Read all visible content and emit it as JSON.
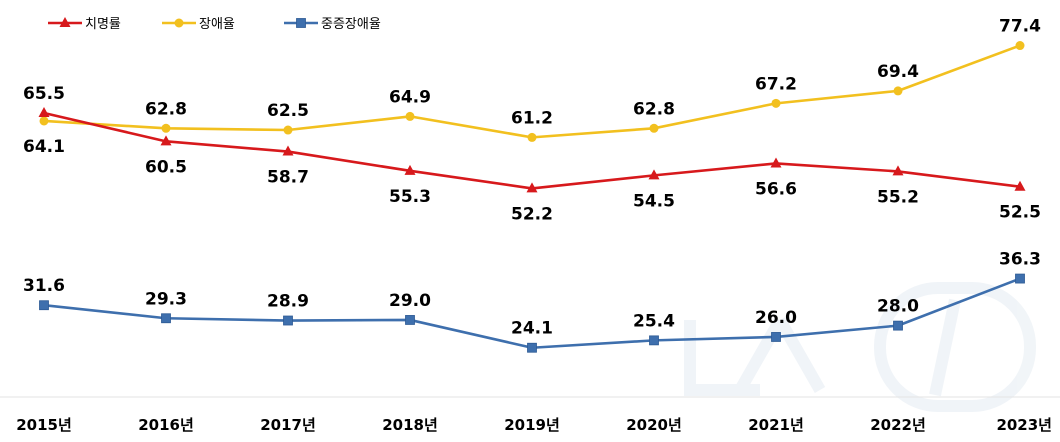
{
  "chart_data": {
    "type": "line",
    "title": "",
    "xlabel": "",
    "ylabel": "",
    "categories": [
      "2015년",
      "2016년",
      "2017년",
      "2018년",
      "2019년",
      "2020년",
      "2021년",
      "2022년",
      "2023년"
    ],
    "series": [
      {
        "name": "치명률",
        "color": "#d7191c",
        "marker": "triangle",
        "values": [
          65.5,
          60.5,
          58.7,
          55.3,
          52.2,
          54.5,
          56.6,
          55.2,
          52.5
        ],
        "labels": [
          "65.5",
          "60.5",
          "58.7",
          "55.3",
          "52.2",
          "54.5",
          "56.6",
          "55.2",
          "52.5"
        ]
      },
      {
        "name": "장애율",
        "color": "#f2c01f",
        "marker": "circle",
        "values": [
          64.1,
          62.8,
          62.5,
          64.9,
          61.2,
          62.8,
          67.2,
          69.4,
          77.4
        ],
        "labels": [
          "64.1",
          "62.8",
          "62.5",
          "64.9",
          "61.2",
          "62.8",
          "67.2",
          "69.4",
          "77.4"
        ]
      },
      {
        "name": "중증장애율",
        "color": "#3e6fad",
        "marker": "square",
        "values": [
          31.6,
          29.3,
          28.9,
          29.0,
          24.1,
          25.4,
          26.0,
          28.0,
          36.3
        ],
        "labels": [
          "31.6",
          "29.3",
          "28.9",
          "29.0",
          "24.1",
          "25.4",
          "26.0",
          "28.0",
          "36.3"
        ]
      }
    ],
    "grid": false,
    "legend_position": "top-left",
    "watermark_text": "뉴스1"
  }
}
